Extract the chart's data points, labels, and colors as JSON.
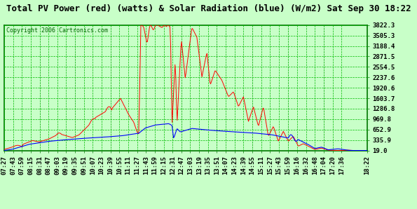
{
  "title": "Total PV Power (red) (watts) & Solar Radiation (blue) (W/m2) Sat Sep 30 18:22",
  "copyright_text": "Copyright 2006 Cartronics.com",
  "bg_color": "#c8ffc8",
  "y_min": 19.0,
  "y_max": 3822.3,
  "y_ticks": [
    19.0,
    335.9,
    652.9,
    969.8,
    1286.8,
    1603.7,
    1920.6,
    2237.6,
    2554.5,
    2871.5,
    3188.4,
    3505.3,
    3822.3
  ],
  "red_color": "#ff0000",
  "blue_color": "#0000ff",
  "dark_red_color": "#880000",
  "grid_color": "#00bb00",
  "grid_minor_color": "#00cc00",
  "x_labels": [
    "07:27",
    "07:43",
    "07:59",
    "08:15",
    "08:31",
    "08:47",
    "09:03",
    "09:19",
    "09:35",
    "09:51",
    "10:07",
    "10:23",
    "10:39",
    "10:55",
    "11:11",
    "11:27",
    "11:43",
    "11:59",
    "12:15",
    "12:31",
    "12:47",
    "13:03",
    "13:19",
    "13:35",
    "13:51",
    "14:07",
    "14:23",
    "14:39",
    "14:55",
    "15:11",
    "15:27",
    "15:43",
    "15:59",
    "16:16",
    "16:32",
    "16:48",
    "17:04",
    "17:20",
    "17:36",
    "18:22"
  ],
  "title_fontsize": 9,
  "tick_fontsize": 6.5,
  "copyright_fontsize": 6
}
